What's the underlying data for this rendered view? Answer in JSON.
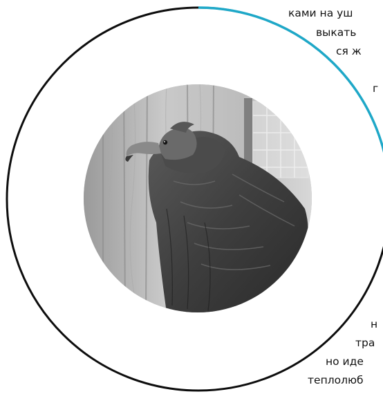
{
  "colors": {
    "ring_main": "#0d0d0d",
    "ring_accent": "#1ea8c8",
    "text": "#111111"
  },
  "image": {
    "subject": "vulture-photo"
  },
  "text_top": [
    "ками на уш",
    "выкать",
    "ся ж",
    "г"
  ],
  "text_bottom": [
    "н",
    "тра",
    "но иде",
    "теплолюб"
  ]
}
